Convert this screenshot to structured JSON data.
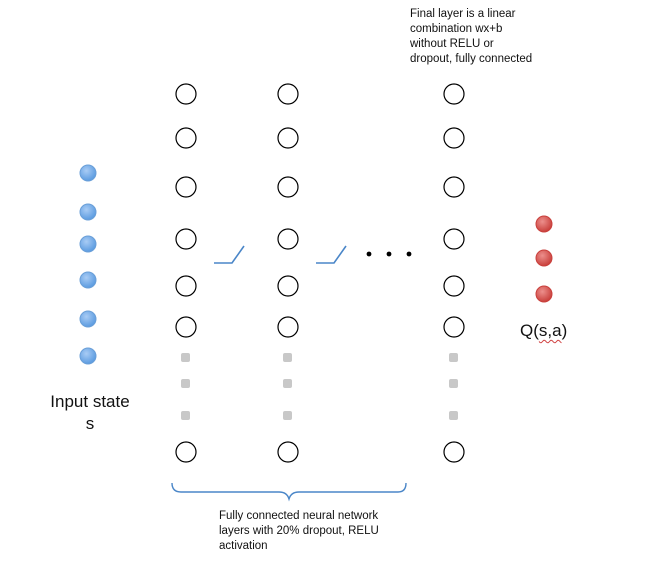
{
  "labels": {
    "final_layer_note": "Final layer is a linear combination wx+b without RELU or dropout, fully connected",
    "final_layer_lines": [
      "Final layer is a linear",
      "combination wx+b",
      "without RELU or",
      "dropout, fully connected"
    ],
    "hidden_layers_note": "Fully connected neural network layers with 20% dropout, RELU activation",
    "hidden_layers_lines": [
      "Fully connected neural network",
      "layers with 20% dropout, RELU",
      "activation"
    ],
    "input_label_line1": "Input state",
    "input_label_line2": "s",
    "output_label_prefix": "Q(",
    "output_label_wavy": "s,a",
    "output_label_suffix": ")",
    "ellipsis": "…"
  },
  "colors": {
    "input_node": "#6aa6e8",
    "output_node": "#d9534f",
    "hidden_node_stroke": "#000000",
    "dropped_node": "#c8c8c8",
    "brace": "#4a86c8",
    "relu": "#4a86c8"
  },
  "network": {
    "input_nodes": 6,
    "hidden_layers": 3,
    "visible_nodes_per_hidden_layer": 7,
    "output_nodes": 3
  }
}
